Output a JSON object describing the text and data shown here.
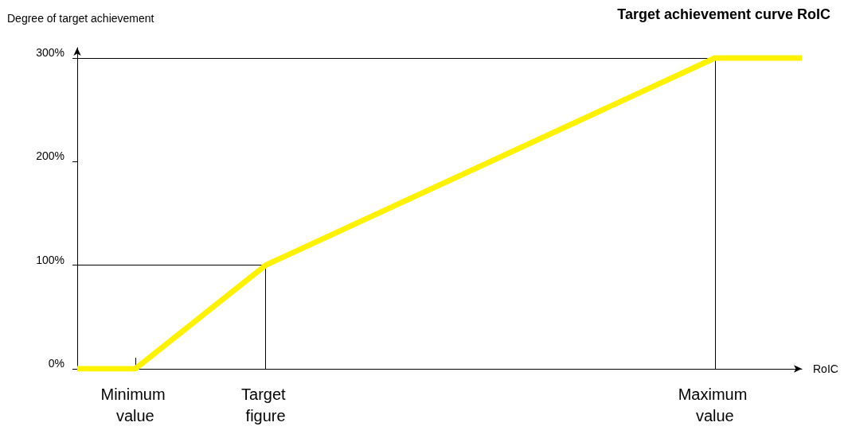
{
  "chart_data": {
    "type": "line",
    "title": "Target achievement curve RoIC",
    "xlabel": "RoIC",
    "ylabel": "Degree of target achievement",
    "categories": [
      null,
      null,
      null,
      null,
      "Minimum value",
      null,
      null,
      null,
      null,
      null,
      null,
      null,
      null,
      "Target figure",
      null,
      null,
      null,
      null,
      null,
      null,
      null,
      null,
      null,
      null,
      null,
      null,
      null,
      null,
      null,
      null,
      null,
      null,
      null,
      null,
      null,
      null,
      null,
      null,
      null,
      null,
      null,
      null,
      null,
      null,
      "Maximum value",
      null,
      null,
      null,
      null,
      null,
      null
    ],
    "series": [
      {
        "color": "#fff200",
        "values": [
          0,
          null,
          null,
          null,
          0,
          null,
          null,
          null,
          null,
          null,
          null,
          null,
          null,
          100,
          null,
          null,
          null,
          null,
          null,
          null,
          null,
          null,
          null,
          null,
          null,
          null,
          null,
          null,
          null,
          null,
          null,
          null,
          null,
          null,
          null,
          null,
          null,
          null,
          null,
          null,
          null,
          null,
          null,
          null,
          300,
          null,
          null,
          null,
          null,
          null,
          300
        ]
      }
    ],
    "ylim": [
      0,
      310
    ],
    "yticks": [
      {
        "value": 0,
        "label": "0%"
      },
      {
        "value": 100,
        "label": "100%"
      },
      {
        "value": 200,
        "label": "200%"
      },
      {
        "value": 300,
        "label": "300%"
      }
    ],
    "ref_lines": [
      {
        "axis": "x",
        "value": "Target figure",
        "color": "#000000"
      },
      {
        "axis": "x",
        "value": "Maximum value",
        "color": "#000000"
      },
      {
        "axis": "y",
        "value": 100,
        "color": "#000000"
      },
      {
        "axis": "y",
        "value": 300,
        "color": "#000000"
      }
    ],
    "marker": "none",
    "line_style": "solid"
  }
}
